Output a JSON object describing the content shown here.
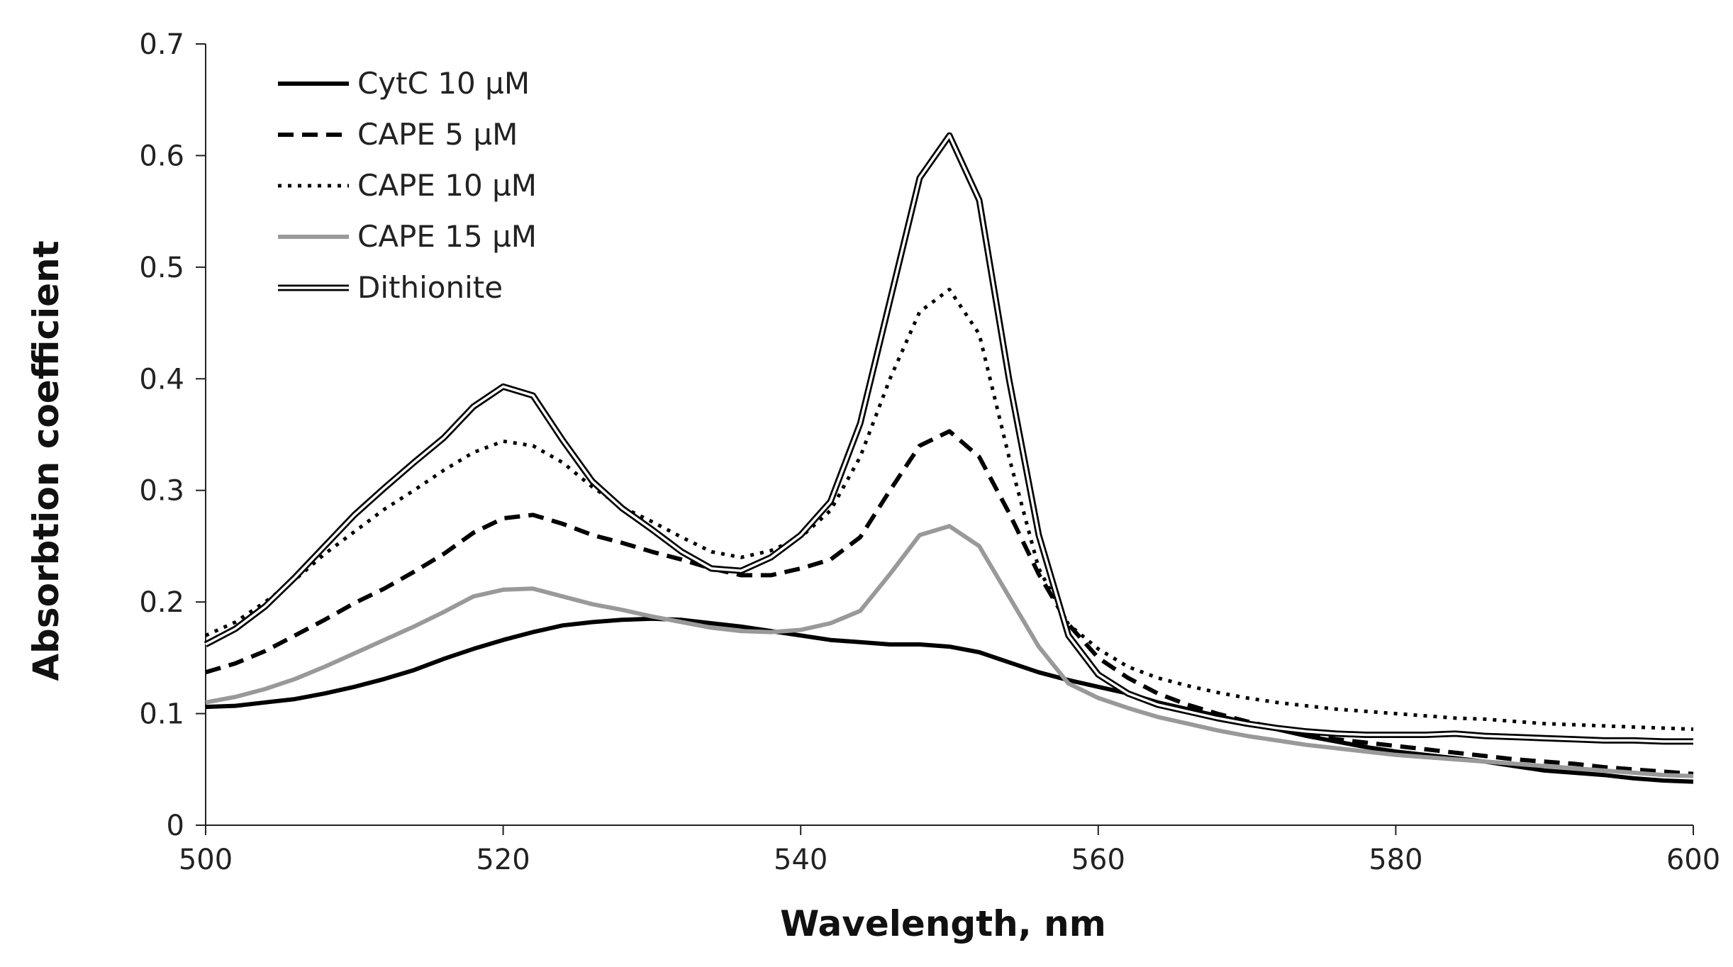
{
  "chart_data": {
    "type": "line",
    "title": "",
    "xlabel": "Wavelength, nm",
    "ylabel": "Absorbtion coefficient",
    "xlim": [
      500,
      600
    ],
    "ylim": [
      0,
      0.7
    ],
    "xticks": [
      500,
      520,
      540,
      560,
      580,
      600
    ],
    "yticks": [
      0,
      0.1,
      0.2,
      0.3,
      0.4,
      0.5,
      0.6,
      0.7
    ],
    "grid": false,
    "legend_position": "top-left",
    "series": [
      {
        "name": "CytC 10 µM",
        "color": "#000000",
        "style": "solid",
        "x": [
          500,
          502,
          504,
          506,
          508,
          510,
          512,
          514,
          516,
          518,
          520,
          522,
          524,
          526,
          528,
          530,
          532,
          534,
          536,
          538,
          540,
          542,
          544,
          546,
          548,
          550,
          552,
          554,
          556,
          558,
          560,
          562,
          564,
          566,
          568,
          570,
          572,
          574,
          576,
          578,
          580,
          582,
          584,
          586,
          588,
          590,
          592,
          594,
          596,
          598,
          600
        ],
        "y": [
          0.106,
          0.107,
          0.11,
          0.113,
          0.118,
          0.124,
          0.131,
          0.139,
          0.149,
          0.158,
          0.166,
          0.173,
          0.179,
          0.182,
          0.184,
          0.185,
          0.184,
          0.181,
          0.178,
          0.174,
          0.17,
          0.166,
          0.164,
          0.162,
          0.162,
          0.16,
          0.155,
          0.146,
          0.137,
          0.13,
          0.124,
          0.118,
          0.11,
          0.104,
          0.098,
          0.092,
          0.086,
          0.08,
          0.075,
          0.07,
          0.066,
          0.063,
          0.06,
          0.057,
          0.053,
          0.049,
          0.047,
          0.045,
          0.042,
          0.04,
          0.039
        ]
      },
      {
        "name": "CAPE 5 µM",
        "color": "#000000",
        "style": "dashed",
        "x": [
          500,
          502,
          504,
          506,
          508,
          510,
          512,
          514,
          516,
          518,
          520,
          522,
          524,
          526,
          528,
          530,
          532,
          534,
          536,
          538,
          540,
          542,
          544,
          546,
          548,
          550,
          552,
          554,
          556,
          558,
          560,
          562,
          564,
          566,
          568,
          570,
          572,
          574,
          576,
          578,
          580,
          582,
          584,
          586,
          588,
          590,
          592,
          594,
          596,
          598,
          600
        ],
        "y": [
          0.137,
          0.145,
          0.156,
          0.17,
          0.184,
          0.199,
          0.212,
          0.227,
          0.243,
          0.262,
          0.275,
          0.278,
          0.27,
          0.26,
          0.253,
          0.245,
          0.238,
          0.23,
          0.224,
          0.224,
          0.23,
          0.238,
          0.258,
          0.3,
          0.34,
          0.353,
          0.33,
          0.28,
          0.225,
          0.18,
          0.15,
          0.132,
          0.118,
          0.108,
          0.1,
          0.093,
          0.087,
          0.081,
          0.077,
          0.074,
          0.071,
          0.068,
          0.065,
          0.062,
          0.059,
          0.057,
          0.055,
          0.052,
          0.05,
          0.048,
          0.046
        ]
      },
      {
        "name": "CAPE 10 µM",
        "color": "#000000",
        "style": "dotted",
        "x": [
          500,
          502,
          504,
          506,
          508,
          510,
          512,
          514,
          516,
          518,
          520,
          522,
          524,
          526,
          528,
          530,
          532,
          534,
          536,
          538,
          540,
          542,
          544,
          546,
          548,
          550,
          552,
          554,
          556,
          558,
          560,
          562,
          564,
          566,
          568,
          570,
          572,
          574,
          576,
          578,
          580,
          582,
          584,
          586,
          588,
          590,
          592,
          594,
          596,
          598,
          600
        ],
        "y": [
          0.17,
          0.182,
          0.2,
          0.22,
          0.243,
          0.263,
          0.283,
          0.3,
          0.318,
          0.334,
          0.344,
          0.34,
          0.325,
          0.303,
          0.285,
          0.272,
          0.258,
          0.245,
          0.24,
          0.246,
          0.258,
          0.282,
          0.33,
          0.4,
          0.46,
          0.48,
          0.44,
          0.33,
          0.23,
          0.18,
          0.158,
          0.142,
          0.132,
          0.125,
          0.119,
          0.114,
          0.11,
          0.107,
          0.104,
          0.102,
          0.1,
          0.098,
          0.096,
          0.095,
          0.093,
          0.091,
          0.09,
          0.089,
          0.088,
          0.087,
          0.086
        ]
      },
      {
        "name": "CAPE 15 µM",
        "color": "#999999",
        "style": "solid",
        "x": [
          500,
          502,
          504,
          506,
          508,
          510,
          512,
          514,
          516,
          518,
          520,
          522,
          524,
          526,
          528,
          530,
          532,
          534,
          536,
          538,
          540,
          542,
          544,
          546,
          548,
          550,
          552,
          554,
          556,
          558,
          560,
          562,
          564,
          566,
          568,
          570,
          572,
          574,
          576,
          578,
          580,
          582,
          584,
          586,
          588,
          590,
          592,
          594,
          596,
          598,
          600
        ],
        "y": [
          0.11,
          0.115,
          0.122,
          0.131,
          0.142,
          0.154,
          0.166,
          0.178,
          0.191,
          0.205,
          0.211,
          0.212,
          0.205,
          0.198,
          0.193,
          0.187,
          0.182,
          0.177,
          0.174,
          0.173,
          0.175,
          0.181,
          0.192,
          0.225,
          0.26,
          0.268,
          0.25,
          0.205,
          0.16,
          0.127,
          0.114,
          0.105,
          0.097,
          0.091,
          0.085,
          0.08,
          0.076,
          0.072,
          0.069,
          0.066,
          0.063,
          0.061,
          0.059,
          0.057,
          0.055,
          0.053,
          0.051,
          0.049,
          0.047,
          0.045,
          0.044
        ]
      },
      {
        "name": "Dithionite",
        "color": "#000000",
        "style": "double",
        "x": [
          500,
          502,
          504,
          506,
          508,
          510,
          512,
          514,
          516,
          518,
          520,
          522,
          524,
          526,
          528,
          530,
          532,
          534,
          536,
          538,
          540,
          542,
          544,
          546,
          548,
          550,
          552,
          554,
          556,
          558,
          560,
          562,
          564,
          566,
          568,
          570,
          572,
          574,
          576,
          578,
          580,
          582,
          584,
          586,
          588,
          590,
          592,
          594,
          596,
          598,
          600
        ],
        "y": [
          0.162,
          0.176,
          0.196,
          0.222,
          0.25,
          0.278,
          0.302,
          0.325,
          0.347,
          0.375,
          0.393,
          0.385,
          0.345,
          0.308,
          0.284,
          0.265,
          0.245,
          0.23,
          0.228,
          0.24,
          0.26,
          0.29,
          0.36,
          0.47,
          0.58,
          0.618,
          0.56,
          0.4,
          0.26,
          0.17,
          0.135,
          0.118,
          0.108,
          0.102,
          0.096,
          0.091,
          0.087,
          0.084,
          0.082,
          0.081,
          0.081,
          0.081,
          0.082,
          0.08,
          0.079,
          0.078,
          0.077,
          0.076,
          0.076,
          0.075,
          0.075
        ]
      }
    ]
  }
}
